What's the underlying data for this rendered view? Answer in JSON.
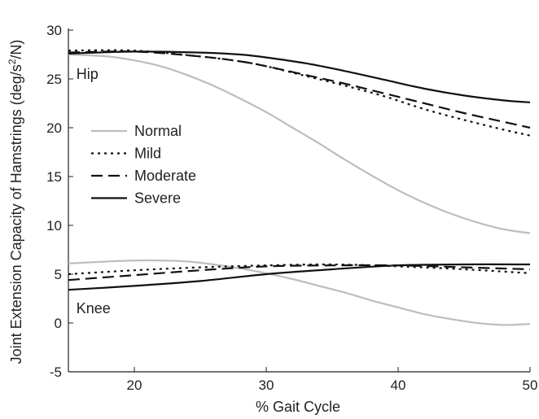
{
  "chart_data": {
    "type": "line",
    "xlabel": "% Gait Cycle",
    "ylabel_main": "Joint Extension Capacity of Hamstrings (deg/s",
    "ylabel_sup": "2",
    "ylabel_tail": "/N)",
    "xlim": [
      15,
      50
    ],
    "ylim": [
      -5,
      30
    ],
    "xticks": [
      20,
      30,
      40,
      50
    ],
    "yticks": [
      -5,
      0,
      5,
      10,
      15,
      20,
      25,
      30
    ],
    "grid": false,
    "legend_position": "left-middle",
    "annotations": [
      {
        "text": "Hip",
        "x": 15.6,
        "y": 25
      },
      {
        "text": "Knee",
        "x": 15.6,
        "y": 1
      }
    ],
    "series": [
      {
        "name": "Normal",
        "group": "Hip",
        "style": "solid",
        "color": "#bdbdbd",
        "x": [
          15,
          18,
          20,
          22,
          24,
          26,
          28,
          30,
          32,
          34,
          36,
          38,
          40,
          42,
          44,
          46,
          48,
          50
        ],
        "y": [
          27.5,
          27.3,
          26.9,
          26.3,
          25.4,
          24.3,
          23.0,
          21.6,
          20.0,
          18.4,
          16.7,
          15.1,
          13.6,
          12.3,
          11.2,
          10.3,
          9.6,
          9.2
        ]
      },
      {
        "name": "Mild",
        "group": "Hip",
        "style": "dotted",
        "color": "#111111",
        "x": [
          15,
          20,
          25,
          28,
          30,
          33,
          36,
          39,
          42,
          45,
          48,
          50
        ],
        "y": [
          27.9,
          27.9,
          27.3,
          26.8,
          26.3,
          25.3,
          24.3,
          23.2,
          21.9,
          20.8,
          19.8,
          19.2
        ]
      },
      {
        "name": "Moderate",
        "group": "Hip",
        "style": "dashed",
        "color": "#111111",
        "x": [
          15,
          20,
          25,
          28,
          30,
          33,
          36,
          39,
          42,
          45,
          48,
          50
        ],
        "y": [
          27.7,
          27.8,
          27.3,
          26.8,
          26.3,
          25.4,
          24.5,
          23.5,
          22.5,
          21.5,
          20.6,
          20.0
        ]
      },
      {
        "name": "Severe",
        "group": "Hip",
        "style": "solid",
        "color": "#111111",
        "x": [
          15,
          20,
          25,
          28,
          30,
          33,
          36,
          39,
          42,
          45,
          48,
          50
        ],
        "y": [
          27.6,
          27.8,
          27.7,
          27.5,
          27.2,
          26.6,
          25.8,
          24.9,
          24.0,
          23.3,
          22.8,
          22.6
        ]
      },
      {
        "name": "Normal",
        "group": "Knee",
        "style": "solid",
        "color": "#bdbdbd",
        "x": [
          15,
          18,
          20,
          22,
          24,
          26,
          28,
          30,
          32,
          34,
          36,
          38,
          40,
          42,
          44,
          46,
          48,
          50
        ],
        "y": [
          6.1,
          6.3,
          6.4,
          6.4,
          6.3,
          6.0,
          5.6,
          5.1,
          4.5,
          3.8,
          3.1,
          2.3,
          1.6,
          0.9,
          0.4,
          0.0,
          -0.2,
          -0.1
        ]
      },
      {
        "name": "Mild",
        "group": "Knee",
        "style": "dotted",
        "color": "#111111",
        "x": [
          15,
          20,
          25,
          30,
          35,
          40,
          45,
          50
        ],
        "y": [
          5.0,
          5.4,
          5.7,
          5.9,
          6.0,
          5.8,
          5.5,
          5.1
        ]
      },
      {
        "name": "Moderate",
        "group": "Knee",
        "style": "dashed",
        "color": "#111111",
        "x": [
          15,
          20,
          25,
          30,
          35,
          40,
          45,
          50
        ],
        "y": [
          4.4,
          4.9,
          5.4,
          5.8,
          5.9,
          5.9,
          5.7,
          5.5
        ]
      },
      {
        "name": "Severe",
        "group": "Knee",
        "style": "solid",
        "color": "#111111",
        "x": [
          15,
          20,
          25,
          30,
          35,
          40,
          45,
          50
        ],
        "y": [
          3.4,
          3.8,
          4.3,
          5.0,
          5.5,
          5.9,
          6.0,
          6.0
        ]
      }
    ],
    "legend": [
      {
        "label": "Normal",
        "style": "solid",
        "color": "#bdbdbd"
      },
      {
        "label": "Mild",
        "style": "dotted",
        "color": "#111111"
      },
      {
        "label": "Moderate",
        "style": "dashed",
        "color": "#111111"
      },
      {
        "label": "Severe",
        "style": "solid",
        "color": "#111111"
      }
    ]
  }
}
